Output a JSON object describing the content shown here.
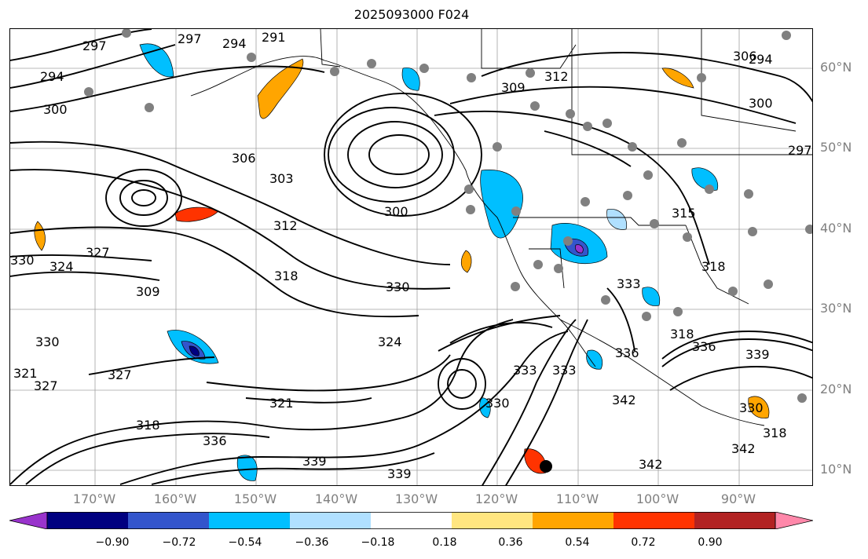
{
  "title": "2025093000 F024",
  "latitude_labels": [
    "60°N",
    "50°N",
    "40°N",
    "30°N",
    "20°N",
    "10°N"
  ],
  "longitude_labels": [
    "170°W",
    "160°W",
    "150°W",
    "140°W",
    "130°W",
    "120°W",
    "110°W",
    "100°W",
    "90°W"
  ],
  "contour_labels": [
    "297",
    "294",
    "294",
    "291",
    "297",
    "294",
    "300",
    "306",
    "303",
    "300",
    "312",
    "318",
    "309",
    "312",
    "306",
    "300",
    "297",
    "315",
    "318",
    "330",
    "324",
    "321",
    "327",
    "321",
    "318",
    "333",
    "336",
    "339",
    "339",
    "330",
    "333",
    "327",
    "336",
    "342",
    "342",
    "330",
    "336",
    "339",
    "318",
    "330",
    "324",
    "327",
    "330",
    "309",
    "318",
    "342",
    "333"
  ],
  "colorbar": {
    "tick_labels": [
      "−0.90",
      "−0.72",
      "−0.54",
      "−0.36",
      "−0.18",
      "0.18",
      "0.36",
      "0.54",
      "0.72",
      "0.90"
    ],
    "colors": [
      "#9933cc",
      "#000080",
      "#3355cc",
      "#00bfff",
      "#b0e0ff",
      "#ffffff",
      "#ffe680",
      "#ffa500",
      "#ff3300",
      "#b22222",
      "#ff88aa"
    ]
  }
}
